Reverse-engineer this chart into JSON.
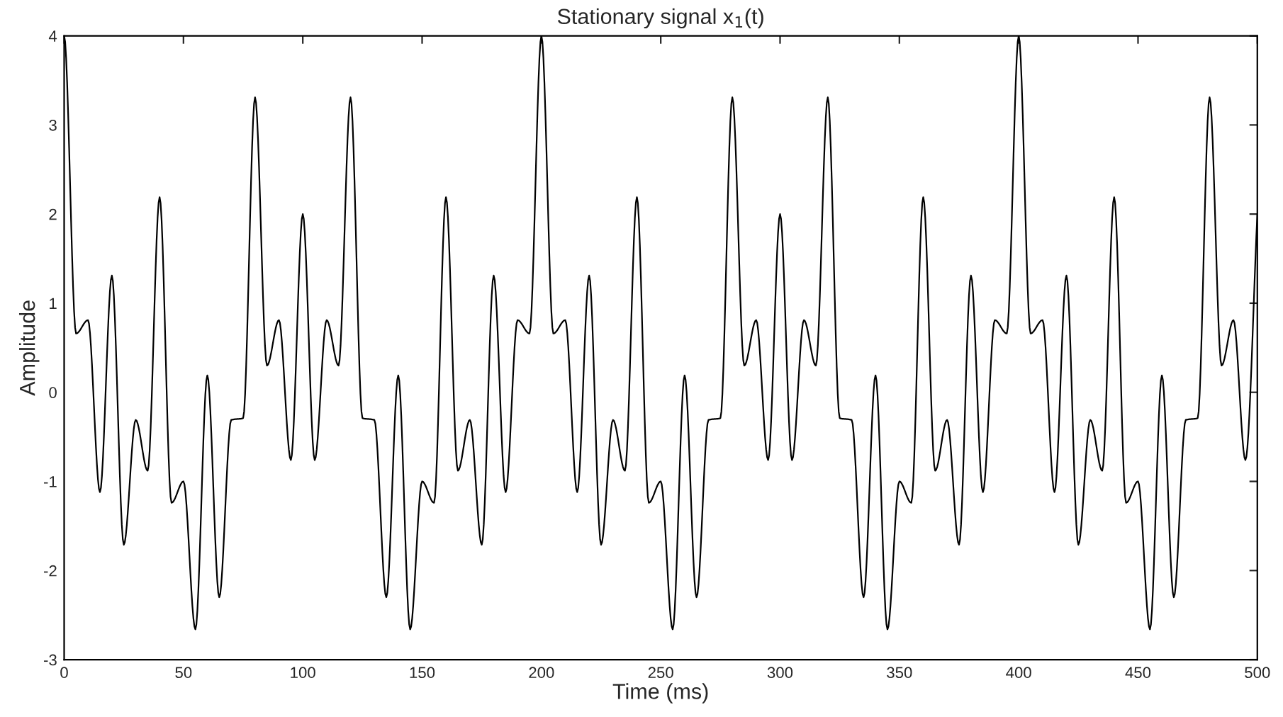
{
  "chart_data": {
    "type": "line",
    "title": "Stationary signal x$_{1}$(t)",
    "xlabel": "Time (ms)",
    "ylabel": "Amplitude",
    "x": [
      0,
      5,
      10,
      15,
      20,
      25,
      30,
      35,
      40,
      45,
      50,
      55,
      60,
      65,
      70,
      75,
      80,
      85,
      90,
      95,
      100,
      105,
      110,
      115,
      120,
      125,
      130,
      135,
      140,
      145,
      150,
      155,
      160,
      165,
      170,
      175,
      180,
      185,
      190,
      195,
      200,
      205,
      210,
      215,
      220,
      225,
      230,
      235,
      240,
      245,
      250,
      255,
      260,
      265,
      270,
      275,
      280,
      285,
      290,
      295,
      300,
      305,
      310,
      315,
      320,
      325,
      330,
      335,
      340,
      345,
      350,
      355,
      360,
      365,
      370,
      375,
      380,
      385,
      390,
      395,
      400,
      405,
      410,
      415,
      420,
      425,
      430,
      435,
      440,
      445,
      450,
      455,
      460,
      465,
      470,
      475,
      480,
      485,
      490,
      495,
      500
    ],
    "series": [
      {
        "color": "#000000",
        "values": [
          4,
          0.66,
          0.81,
          -1.12,
          1.31,
          -1.71,
          -0.31,
          -0.88,
          2.19,
          -1.24,
          -1,
          -2.66,
          0.19,
          -2.3,
          -0.31,
          -0.29,
          3.31,
          0.3,
          0.81,
          -0.76,
          2,
          -0.76,
          0.81,
          0.3,
          3.31,
          -0.29,
          -0.31,
          -2.3,
          0.19,
          -2.66,
          -1,
          -1.24,
          2.19,
          -0.88,
          -0.31,
          -1.71,
          1.31,
          -1.12,
          0.81,
          0.66,
          4,
          0.66,
          0.81,
          -1.12,
          1.31,
          -1.71,
          -0.31,
          -0.88,
          2.19,
          -1.24,
          -1,
          -2.66,
          0.19,
          -2.3,
          -0.31,
          -0.29,
          3.31,
          0.3,
          0.81,
          -0.76,
          2,
          -0.76,
          0.81,
          0.3,
          3.31,
          -0.29,
          -0.31,
          -2.3,
          0.19,
          -2.66,
          -1,
          -1.24,
          2.19,
          -0.88,
          -0.31,
          -1.71,
          1.31,
          -1.12,
          0.81,
          0.66,
          4,
          0.66,
          0.81,
          -1.12,
          1.31,
          -1.71,
          -0.31,
          -0.88,
          2.19,
          -1.24,
          -1,
          -2.66,
          0.19,
          -2.3,
          -0.31,
          -0.29,
          3.31,
          0.3,
          0.81,
          -0.76,
          2
        ]
      }
    ],
    "xlim": [
      0,
      500
    ],
    "xticks": [
      0,
      50,
      100,
      150,
      200,
      250,
      300,
      350,
      400,
      450,
      500
    ],
    "ylim": [
      -3,
      4
    ],
    "yticks": [
      -3,
      -2,
      -1,
      0,
      1,
      2,
      3,
      4
    ],
    "grid": false,
    "legend": false
  }
}
